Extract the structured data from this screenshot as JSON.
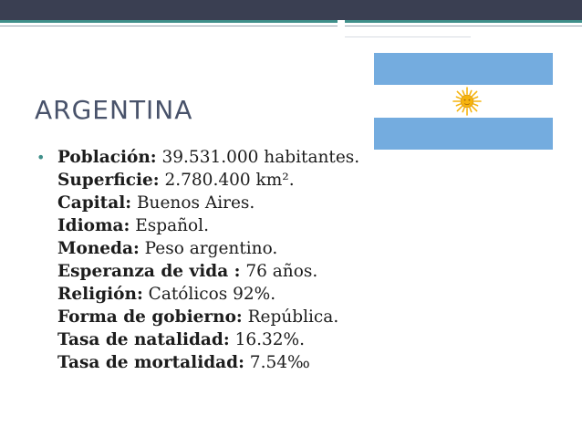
{
  "slide": {
    "title": "ARGENTINA",
    "bullet_symbol": "•",
    "facts": [
      {
        "label": "Población:",
        "value": " 39.531.000 habitantes."
      },
      {
        "label": "Superficie:",
        "value": " 2.780.400 km²."
      },
      {
        "label": "Capital:",
        "value": " Buenos Aires."
      },
      {
        "label": "Idioma:",
        "value": " Español."
      },
      {
        "label": "Moneda:",
        "value": " Peso argentino."
      },
      {
        "label": "Esperanza de vida :",
        "value": " 76 años."
      },
      {
        "label": "Religión:",
        "value": " Católicos 92%."
      },
      {
        "label": "Forma de gobierno:",
        "value": " República."
      },
      {
        "label": "Tasa de natalidad:",
        "value": " 16.32%."
      },
      {
        "label": "Tasa de mortalidad:",
        "value": " 7.54‰"
      }
    ]
  },
  "flag": {
    "country": "Argentina",
    "stripe_color": "#74acdf",
    "center_color": "#ffffff",
    "sun_color": "#f6b40e",
    "icon": "sun-of-may-icon"
  },
  "theme": {
    "header_bar_color": "#3a3f52",
    "accent_color": "#3f8f8a",
    "title_color": "#48526a"
  }
}
